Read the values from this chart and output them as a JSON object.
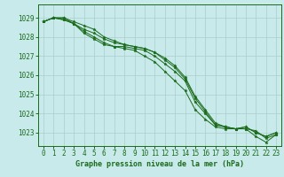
{
  "background_color": "#c8eaea",
  "grid_color": "#aacccc",
  "line_color": "#1a6b1a",
  "marker_color": "#1a6b1a",
  "text_color": "#1a6b1a",
  "xlabel": "Graphe pression niveau de la mer (hPa)",
  "xlim": [
    -0.5,
    23.5
  ],
  "ylim": [
    1022.3,
    1029.7
  ],
  "yticks": [
    1023,
    1024,
    1025,
    1026,
    1027,
    1028,
    1029
  ],
  "xticks": [
    0,
    1,
    2,
    3,
    4,
    5,
    6,
    7,
    8,
    9,
    10,
    11,
    12,
    13,
    14,
    15,
    16,
    17,
    18,
    19,
    20,
    21,
    22,
    23
  ],
  "series": [
    [
      1028.8,
      1029.0,
      1029.0,
      1028.7,
      1028.2,
      1027.9,
      1027.6,
      1027.5,
      1027.4,
      1027.3,
      1027.0,
      1026.7,
      1026.2,
      1025.7,
      1025.2,
      1024.2,
      1023.7,
      1023.3,
      1023.2,
      1023.2,
      1023.2,
      1022.8,
      1022.5,
      1022.9
    ],
    [
      1028.8,
      1029.0,
      1028.9,
      1028.7,
      1028.3,
      1028.0,
      1027.7,
      1027.5,
      1027.5,
      1027.4,
      1027.3,
      1027.0,
      1026.6,
      1026.2,
      1025.7,
      1024.6,
      1024.0,
      1023.4,
      1023.3,
      1023.2,
      1023.3,
      1023.0,
      1022.8,
      1023.0
    ],
    [
      1028.8,
      1029.0,
      1028.9,
      1028.7,
      1028.4,
      1028.2,
      1027.9,
      1027.7,
      1027.6,
      1027.5,
      1027.4,
      1027.2,
      1026.8,
      1026.4,
      1025.8,
      1024.8,
      1024.1,
      1023.4,
      1023.3,
      1023.2,
      1023.3,
      1023.0,
      1022.8,
      1023.0
    ],
    [
      1028.8,
      1029.0,
      1029.0,
      1028.8,
      1028.6,
      1028.4,
      1028.0,
      1027.8,
      1027.6,
      1027.5,
      1027.4,
      1027.2,
      1026.9,
      1026.5,
      1025.9,
      1024.9,
      1024.2,
      1023.5,
      1023.3,
      1023.2,
      1023.2,
      1023.1,
      1022.7,
      1022.9
    ]
  ]
}
